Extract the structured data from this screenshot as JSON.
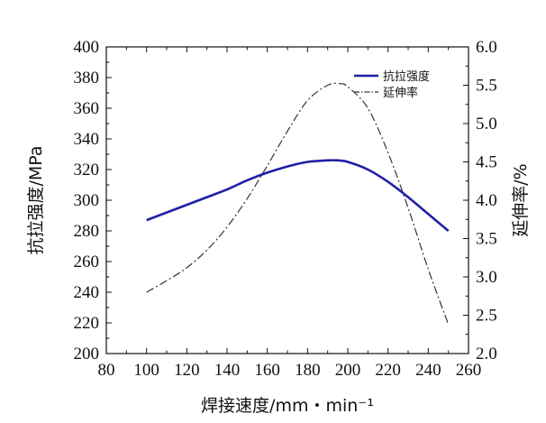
{
  "chart_data": {
    "type": "line",
    "xlabel": "焊接速度/mm・min⁻¹",
    "ylabel_left": "抗拉强度/MPa",
    "ylabel_right": "延伸率/%",
    "xlim": [
      80,
      260
    ],
    "ylim_left": [
      200,
      400
    ],
    "ylim_right": [
      2.0,
      6.0
    ],
    "x_ticks": [
      "80",
      "100",
      "120",
      "140",
      "160",
      "180",
      "200",
      "220",
      "240",
      "260"
    ],
    "y_ticks_left": [
      "200",
      "220",
      "240",
      "260",
      "280",
      "300",
      "320",
      "340",
      "360",
      "380",
      "400"
    ],
    "y_ticks_right": [
      "2.0",
      "2.5",
      "3.0",
      "3.5",
      "4.0",
      "4.5",
      "5.0",
      "5.5",
      "6.0"
    ],
    "grid": false,
    "legend_position": "top-right",
    "series": [
      {
        "name": "抗拉强度",
        "axis": "left",
        "color": "#1f1fa8",
        "style": "solid",
        "x": [
          100,
          110,
          120,
          130,
          140,
          150,
          160,
          170,
          180,
          190,
          195,
          200,
          210,
          220,
          230,
          240,
          250
        ],
        "values": [
          287,
          292,
          297,
          302,
          307,
          313,
          318,
          322,
          325,
          326,
          326,
          325,
          320,
          312,
          302,
          291,
          280
        ]
      },
      {
        "name": "延伸率",
        "axis": "right",
        "color": "#333333",
        "style": "dashdot",
        "x": [
          100,
          110,
          120,
          130,
          140,
          150,
          160,
          170,
          180,
          190,
          196,
          200,
          210,
          220,
          230,
          240,
          250
        ],
        "values": [
          2.8,
          2.95,
          3.12,
          3.35,
          3.65,
          4.02,
          4.45,
          4.9,
          5.3,
          5.5,
          5.52,
          5.48,
          5.2,
          4.62,
          3.9,
          3.1,
          2.38
        ]
      }
    ]
  }
}
